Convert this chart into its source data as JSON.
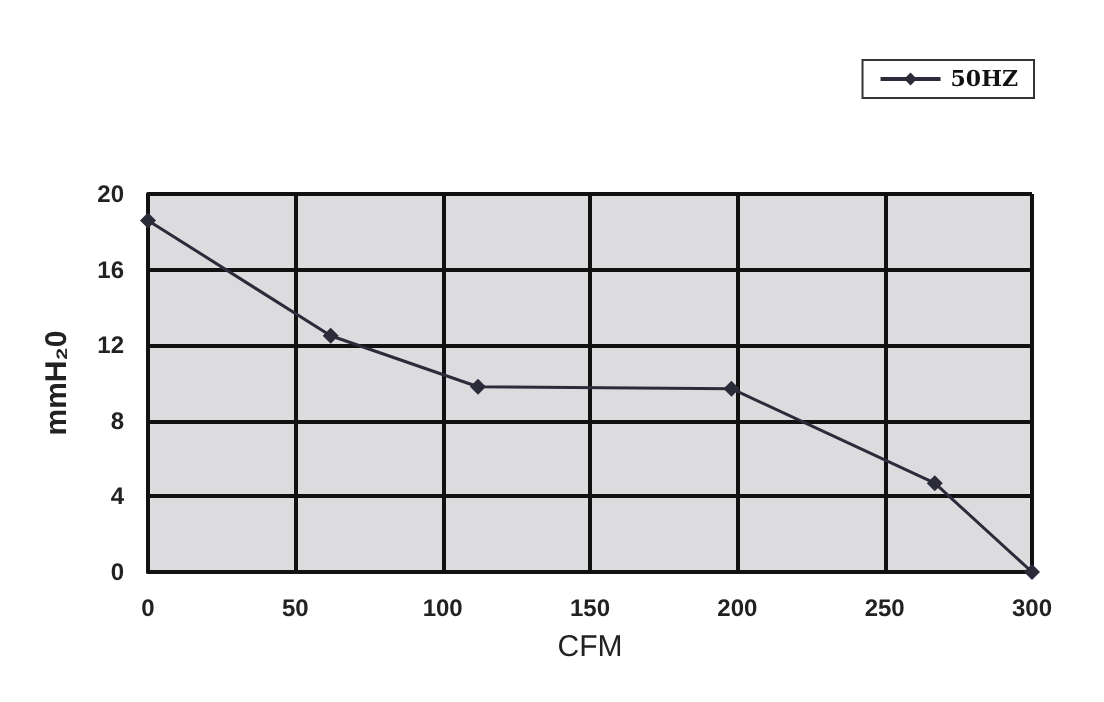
{
  "chart_data": {
    "type": "line",
    "xlabel": "CFM",
    "ylabel": "mmH₂0",
    "x": [
      0,
      62,
      112,
      198,
      267,
      300
    ],
    "series": [
      {
        "name": "50HZ",
        "color": "#2b2b3a",
        "values": [
          18.6,
          12.5,
          9.8,
          9.7,
          4.7,
          0
        ]
      }
    ],
    "xlim": [
      0,
      300
    ],
    "xticks": [
      0,
      50,
      100,
      150,
      200,
      250,
      300
    ],
    "ylim": [
      0,
      20
    ],
    "yticks": [
      0,
      4,
      8,
      12,
      16,
      20
    ],
    "grid": true,
    "legend": "top right",
    "marker": "diamond",
    "line_style": "solid"
  }
}
